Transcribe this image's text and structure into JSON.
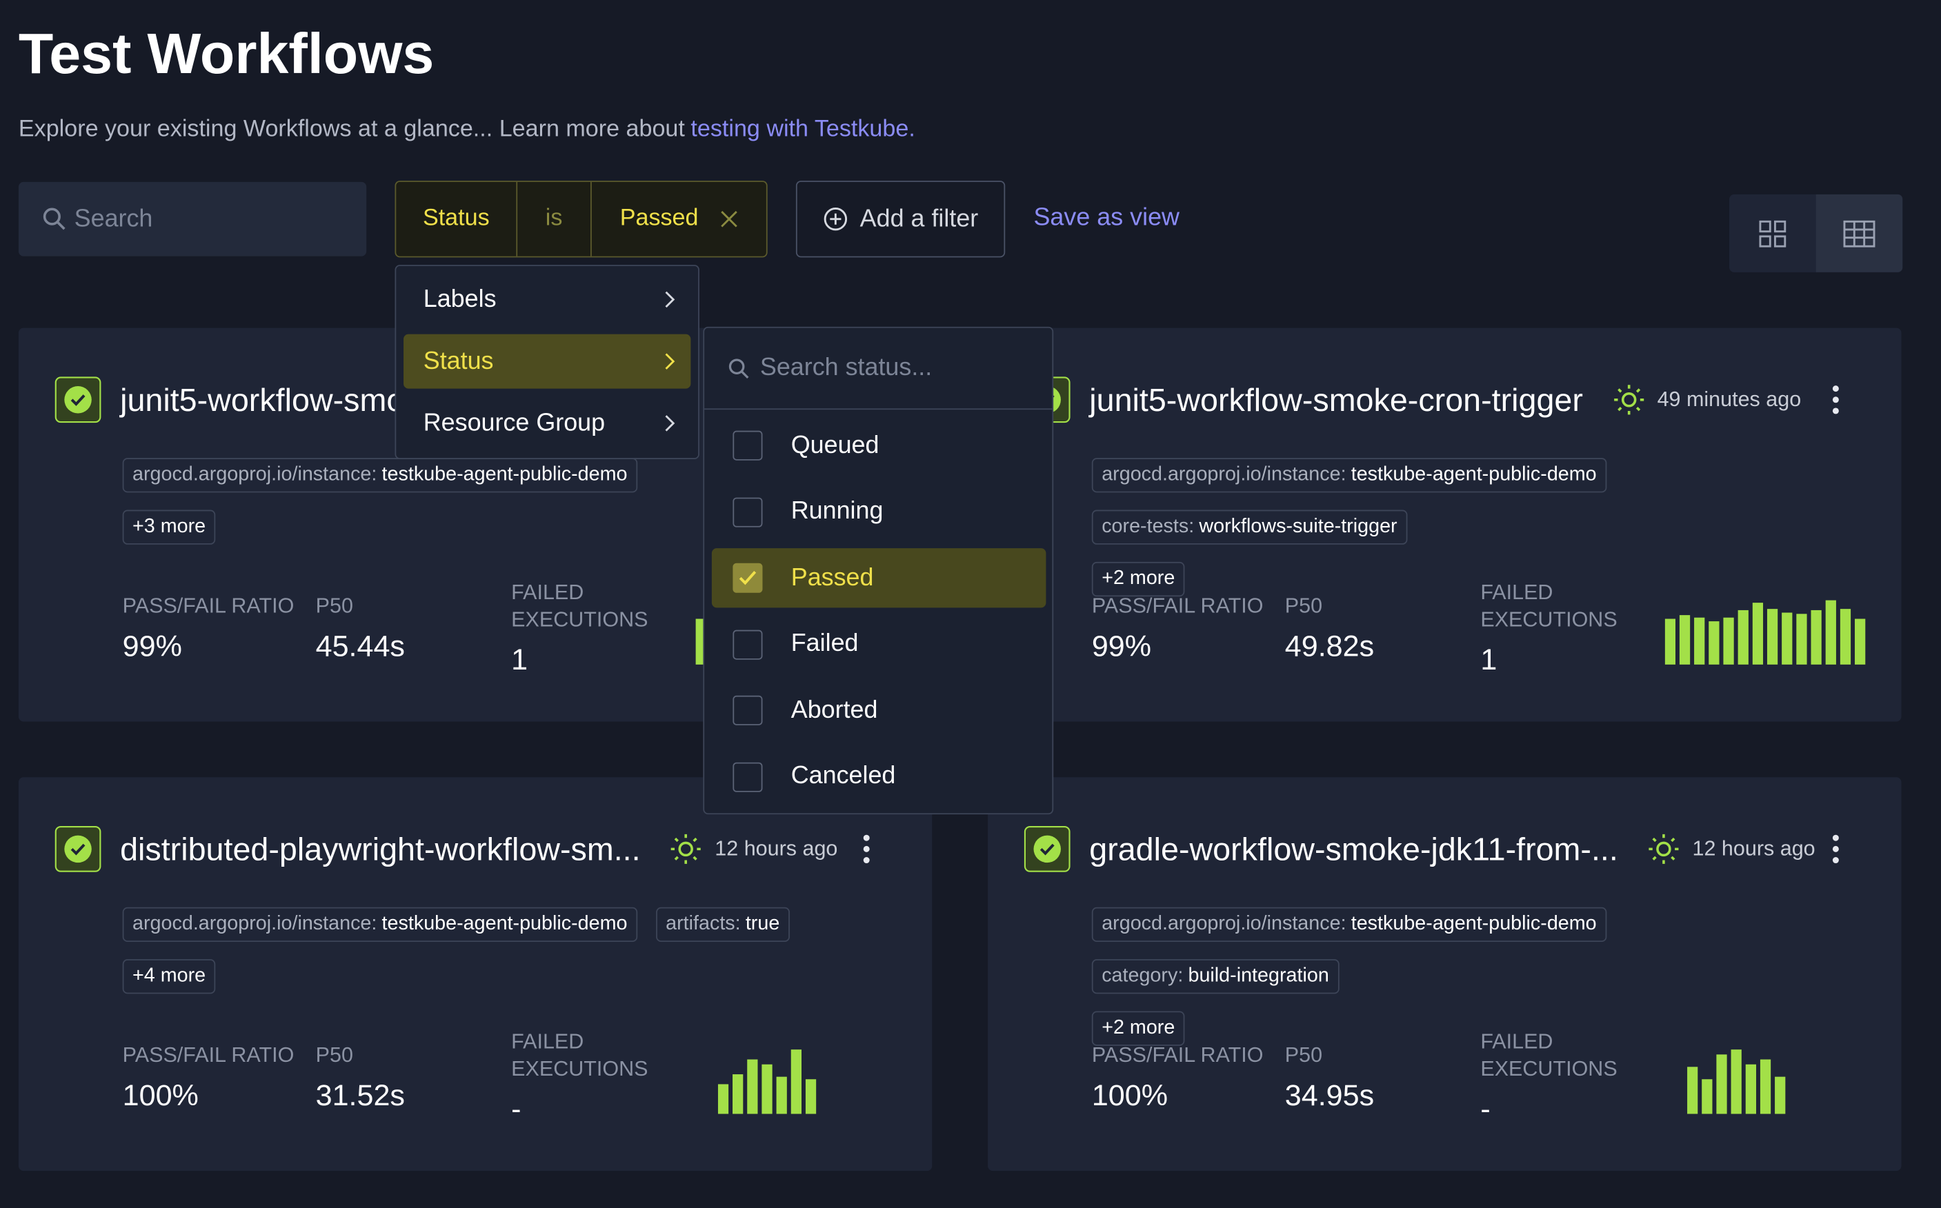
{
  "header": {
    "title": "Test Workflows",
    "subtitle": "Explore your existing Workflows at a glance... Learn more about",
    "link": "testing with Testkube."
  },
  "toolbar": {
    "search_placeholder": "Search",
    "filter": {
      "field": "Status",
      "operator": "is",
      "value": "Passed"
    },
    "add_filter": "Add a filter",
    "save_view": "Save as view"
  },
  "filter_menu": {
    "items": [
      "Labels",
      "Status",
      "Resource Group"
    ],
    "active_index": 1
  },
  "status_menu": {
    "search_placeholder": "Search status...",
    "options": [
      {
        "label": "Queued",
        "checked": false
      },
      {
        "label": "Running",
        "checked": false
      },
      {
        "label": "Passed",
        "checked": true
      },
      {
        "label": "Failed",
        "checked": false
      },
      {
        "label": "Aborted",
        "checked": false
      },
      {
        "label": "Canceled",
        "checked": false
      }
    ]
  },
  "metric_labels": {
    "pass_fail_ratio": "PASS/FAIL RATIO",
    "p50": "P50",
    "failed_executions": "FAILED EXECUTIONS"
  },
  "cards": [
    {
      "name": "junit5-workflow-smo",
      "labels": [
        {
          "key": "argocd.argoproj.io/instance:",
          "value": "testkube-agent-public-demo"
        }
      ],
      "more": "+3 more",
      "pass_fail_ratio": "99%",
      "p50": "45.44s",
      "failed_executions": "1"
    },
    {
      "name": "junit5-workflow-smoke-cron-trigger",
      "time": "49 minutes ago",
      "labels": [
        {
          "key": "argocd.argoproj.io/instance:",
          "value": "testkube-agent-public-demo"
        },
        {
          "key": "core-tests:",
          "value": "workflows-suite-trigger"
        }
      ],
      "more": "+2 more",
      "pass_fail_ratio": "99%",
      "p50": "49.82s",
      "failed_executions": "1"
    },
    {
      "name": "distributed-playwright-workflow-sm...",
      "time": "12 hours ago",
      "labels": [
        {
          "key": "argocd.argoproj.io/instance:",
          "value": "testkube-agent-public-demo"
        },
        {
          "key": "artifacts:",
          "value": "true"
        }
      ],
      "more": "+4 more",
      "pass_fail_ratio": "100%",
      "p50": "31.52s",
      "failed_executions": "-"
    },
    {
      "name": "gradle-workflow-smoke-jdk11-from-...",
      "time": "12 hours ago",
      "labels": [
        {
          "key": "argocd.argoproj.io/instance:",
          "value": "testkube-agent-public-demo"
        },
        {
          "key": "category:",
          "value": "build-integration"
        }
      ],
      "more": "+2 more",
      "pass_fail_ratio": "100%",
      "p50": "34.95s",
      "failed_executions": "-"
    }
  ]
}
